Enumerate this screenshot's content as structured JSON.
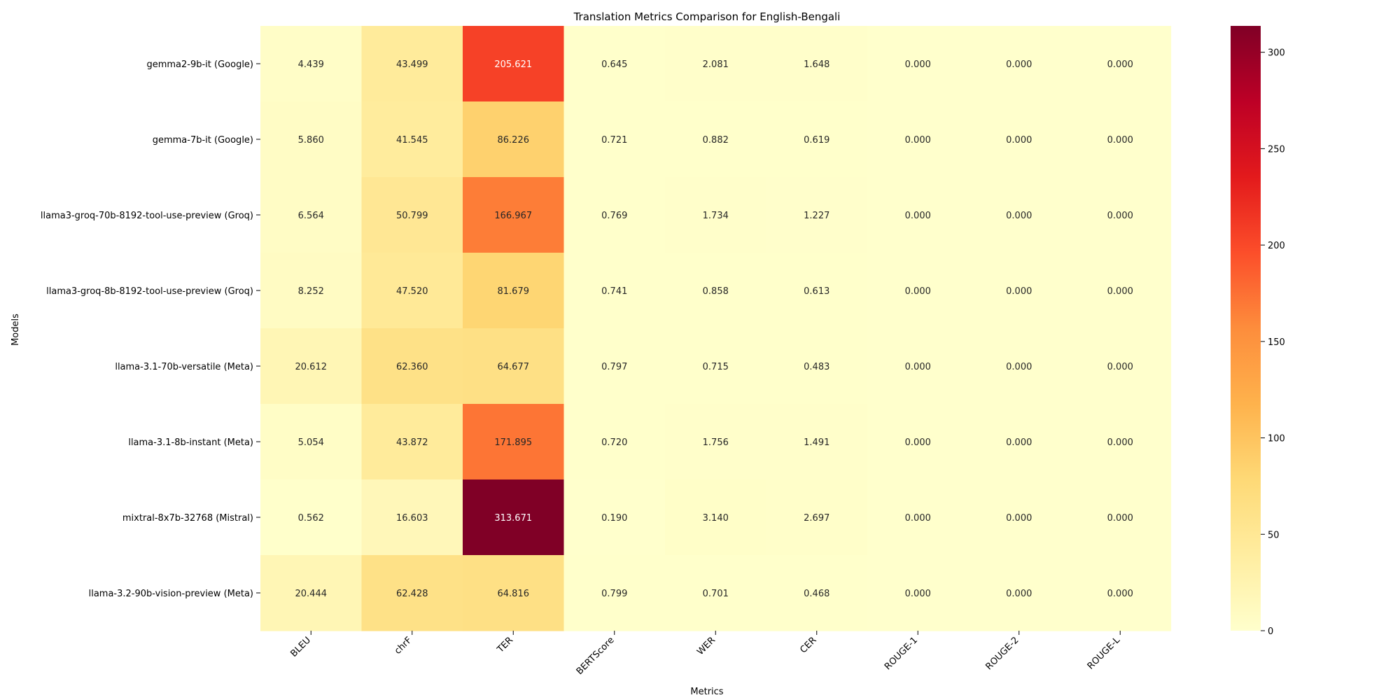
{
  "chart_data": {
    "type": "heatmap",
    "title": "Translation Metrics Comparison for English-Bengali",
    "xlabel": "Metrics",
    "ylabel": "Models",
    "columns": [
      "BLEU",
      "chrF",
      "TER",
      "BERTScore",
      "WER",
      "CER",
      "ROUGE-1",
      "ROUGE-2",
      "ROUGE-L"
    ],
    "rows": [
      "gemma2-9b-it (Google)",
      "gemma-7b-it (Google)",
      "llama3-groq-70b-8192-tool-use-preview (Groq)",
      "llama3-groq-8b-8192-tool-use-preview (Groq)",
      "llama-3.1-70b-versatile (Meta)",
      "llama-3.1-8b-instant (Meta)",
      "mixtral-8x7b-32768 (Mistral)",
      "llama-3.2-90b-vision-preview (Meta)"
    ],
    "values": [
      [
        4.439,
        43.499,
        205.621,
        0.645,
        2.081,
        1.648,
        0.0,
        0.0,
        0.0
      ],
      [
        5.86,
        41.545,
        86.226,
        0.721,
        0.882,
        0.619,
        0.0,
        0.0,
        0.0
      ],
      [
        6.564,
        50.799,
        166.967,
        0.769,
        1.734,
        1.227,
        0.0,
        0.0,
        0.0
      ],
      [
        8.252,
        47.52,
        81.679,
        0.741,
        0.858,
        0.613,
        0.0,
        0.0,
        0.0
      ],
      [
        20.612,
        62.36,
        64.677,
        0.797,
        0.715,
        0.483,
        0.0,
        0.0,
        0.0
      ],
      [
        5.054,
        43.872,
        171.895,
        0.72,
        1.756,
        1.491,
        0.0,
        0.0,
        0.0
      ],
      [
        0.562,
        16.603,
        313.671,
        0.19,
        3.14,
        2.697,
        0.0,
        0.0,
        0.0
      ],
      [
        20.444,
        62.428,
        64.816,
        0.799,
        0.701,
        0.468,
        0.0,
        0.0,
        0.0
      ]
    ],
    "value_format": "3 decimals",
    "colormap": "YlOrRd",
    "color_range": [
      0,
      313.671
    ],
    "colorbar_ticks": [
      0,
      50,
      100,
      150,
      200,
      250,
      300
    ],
    "legend": "colorbar at right"
  }
}
